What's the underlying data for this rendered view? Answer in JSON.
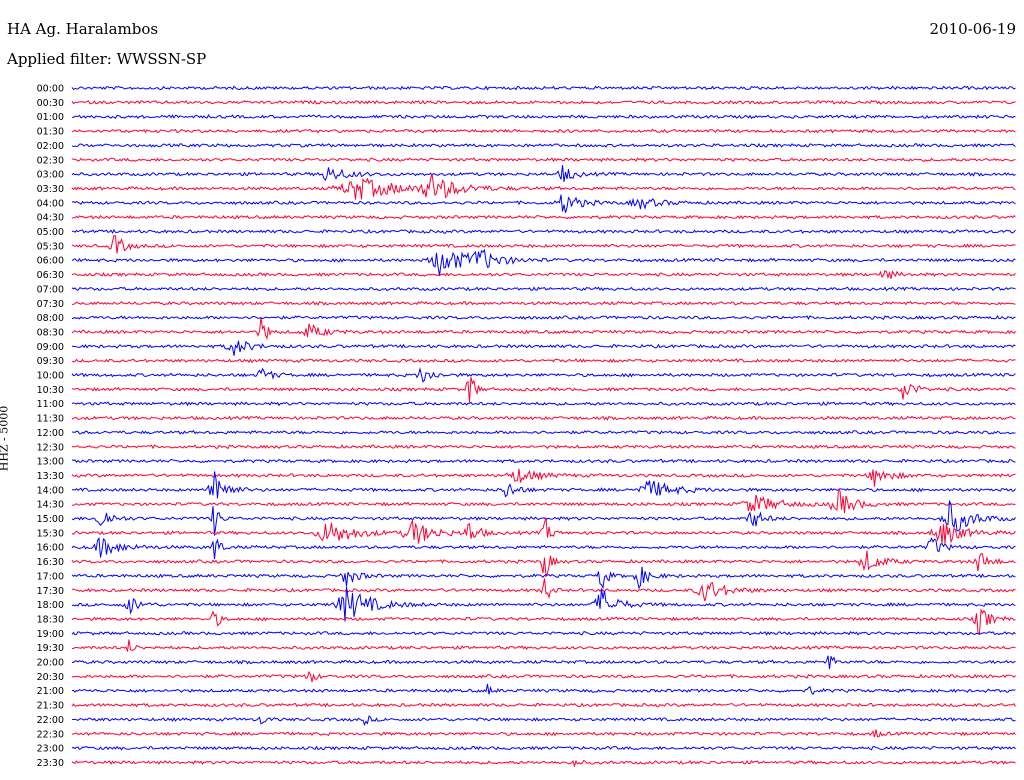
{
  "header": {
    "station": "HA Ag. Haralambos",
    "date": "2010-06-19",
    "filter": "Applied filter: WWSSN-SP"
  },
  "chart_data": {
    "type": "line",
    "title": "HA Ag. Haralambos",
    "ylabel": "HHZ - 5000",
    "trace_colors": [
      "#0000ff",
      "#ff0033"
    ],
    "rows": [
      "00:00",
      "00:30",
      "01:00",
      "01:30",
      "02:00",
      "02:30",
      "03:00",
      "03:30",
      "04:00",
      "04:30",
      "05:00",
      "05:30",
      "06:00",
      "06:30",
      "07:00",
      "07:30",
      "08:00",
      "08:30",
      "09:00",
      "09:30",
      "10:00",
      "10:30",
      "11:00",
      "11:30",
      "12:00",
      "12:30",
      "13:00",
      "13:30",
      "14:00",
      "14:30",
      "15:00",
      "15:30",
      "16:00",
      "16:30",
      "17:00",
      "17:30",
      "18:00",
      "18:30",
      "19:00",
      "19:30",
      "20:00",
      "20:30",
      "21:00",
      "21:30",
      "22:00",
      "22:30",
      "23:00",
      "23:30"
    ],
    "events": [
      {
        "row": 6,
        "x": 0.27,
        "amp": 8,
        "w": 0.04
      },
      {
        "row": 6,
        "x": 0.52,
        "amp": 10,
        "w": 0.02
      },
      {
        "row": 7,
        "x": 0.3,
        "amp": 12,
        "w": 0.08
      },
      {
        "row": 7,
        "x": 0.38,
        "amp": 14,
        "w": 0.05
      },
      {
        "row": 8,
        "x": 0.52,
        "amp": 12,
        "w": 0.03
      },
      {
        "row": 8,
        "x": 0.6,
        "amp": 6,
        "w": 0.04
      },
      {
        "row": 11,
        "x": 0.045,
        "amp": 12,
        "w": 0.02
      },
      {
        "row": 12,
        "x": 0.39,
        "amp": 16,
        "w": 0.05
      },
      {
        "row": 12,
        "x": 0.43,
        "amp": 10,
        "w": 0.04
      },
      {
        "row": 13,
        "x": 0.86,
        "amp": 6,
        "w": 0.02
      },
      {
        "row": 17,
        "x": 0.2,
        "amp": 24,
        "w": 0.01
      },
      {
        "row": 17,
        "x": 0.25,
        "amp": 8,
        "w": 0.03
      },
      {
        "row": 18,
        "x": 0.17,
        "amp": 10,
        "w": 0.03
      },
      {
        "row": 20,
        "x": 0.2,
        "amp": 8,
        "w": 0.02
      },
      {
        "row": 20,
        "x": 0.37,
        "amp": 10,
        "w": 0.02
      },
      {
        "row": 21,
        "x": 0.42,
        "amp": 28,
        "w": 0.01
      },
      {
        "row": 21,
        "x": 0.88,
        "amp": 14,
        "w": 0.02
      },
      {
        "row": 27,
        "x": 0.47,
        "amp": 8,
        "w": 0.04
      },
      {
        "row": 27,
        "x": 0.85,
        "amp": 10,
        "w": 0.03
      },
      {
        "row": 28,
        "x": 0.15,
        "amp": 30,
        "w": 0.02
      },
      {
        "row": 28,
        "x": 0.46,
        "amp": 10,
        "w": 0.02
      },
      {
        "row": 28,
        "x": 0.61,
        "amp": 10,
        "w": 0.05
      },
      {
        "row": 29,
        "x": 0.72,
        "amp": 10,
        "w": 0.05
      },
      {
        "row": 29,
        "x": 0.81,
        "amp": 16,
        "w": 0.03
      },
      {
        "row": 30,
        "x": 0.03,
        "amp": 14,
        "w": 0.02
      },
      {
        "row": 30,
        "x": 0.15,
        "amp": 20,
        "w": 0.01
      },
      {
        "row": 30,
        "x": 0.72,
        "amp": 12,
        "w": 0.02
      },
      {
        "row": 30,
        "x": 0.93,
        "amp": 18,
        "w": 0.04
      },
      {
        "row": 31,
        "x": 0.27,
        "amp": 14,
        "w": 0.05
      },
      {
        "row": 31,
        "x": 0.36,
        "amp": 14,
        "w": 0.04
      },
      {
        "row": 31,
        "x": 0.42,
        "amp": 12,
        "w": 0.02
      },
      {
        "row": 31,
        "x": 0.5,
        "amp": 22,
        "w": 0.01
      },
      {
        "row": 31,
        "x": 0.92,
        "amp": 14,
        "w": 0.04
      },
      {
        "row": 32,
        "x": 0.03,
        "amp": 10,
        "w": 0.04
      },
      {
        "row": 32,
        "x": 0.15,
        "amp": 20,
        "w": 0.01
      },
      {
        "row": 32,
        "x": 0.91,
        "amp": 12,
        "w": 0.02
      },
      {
        "row": 33,
        "x": 0.5,
        "amp": 26,
        "w": 0.01
      },
      {
        "row": 33,
        "x": 0.84,
        "amp": 12,
        "w": 0.03
      },
      {
        "row": 33,
        "x": 0.96,
        "amp": 12,
        "w": 0.02
      },
      {
        "row": 34,
        "x": 0.29,
        "amp": 12,
        "w": 0.02
      },
      {
        "row": 34,
        "x": 0.56,
        "amp": 24,
        "w": 0.01
      },
      {
        "row": 34,
        "x": 0.6,
        "amp": 12,
        "w": 0.02
      },
      {
        "row": 35,
        "x": 0.67,
        "amp": 12,
        "w": 0.04
      },
      {
        "row": 35,
        "x": 0.5,
        "amp": 18,
        "w": 0.01
      },
      {
        "row": 36,
        "x": 0.06,
        "amp": 10,
        "w": 0.02
      },
      {
        "row": 36,
        "x": 0.29,
        "amp": 18,
        "w": 0.05
      },
      {
        "row": 36,
        "x": 0.56,
        "amp": 18,
        "w": 0.03
      },
      {
        "row": 37,
        "x": 0.15,
        "amp": 14,
        "w": 0.01
      },
      {
        "row": 37,
        "x": 0.96,
        "amp": 16,
        "w": 0.02
      },
      {
        "row": 39,
        "x": 0.06,
        "amp": 8,
        "w": 0.01
      },
      {
        "row": 40,
        "x": 0.8,
        "amp": 14,
        "w": 0.01
      },
      {
        "row": 41,
        "x": 0.25,
        "amp": 12,
        "w": 0.01
      },
      {
        "row": 42,
        "x": 0.44,
        "amp": 6,
        "w": 0.01
      },
      {
        "row": 42,
        "x": 0.78,
        "amp": 6,
        "w": 0.01
      },
      {
        "row": 44,
        "x": 0.2,
        "amp": 6,
        "w": 0.01
      },
      {
        "row": 44,
        "x": 0.31,
        "amp": 6,
        "w": 0.01
      },
      {
        "row": 45,
        "x": 0.85,
        "amp": 6,
        "w": 0.01
      },
      {
        "row": 47,
        "x": 0.53,
        "amp": 6,
        "w": 0.01
      }
    ]
  }
}
